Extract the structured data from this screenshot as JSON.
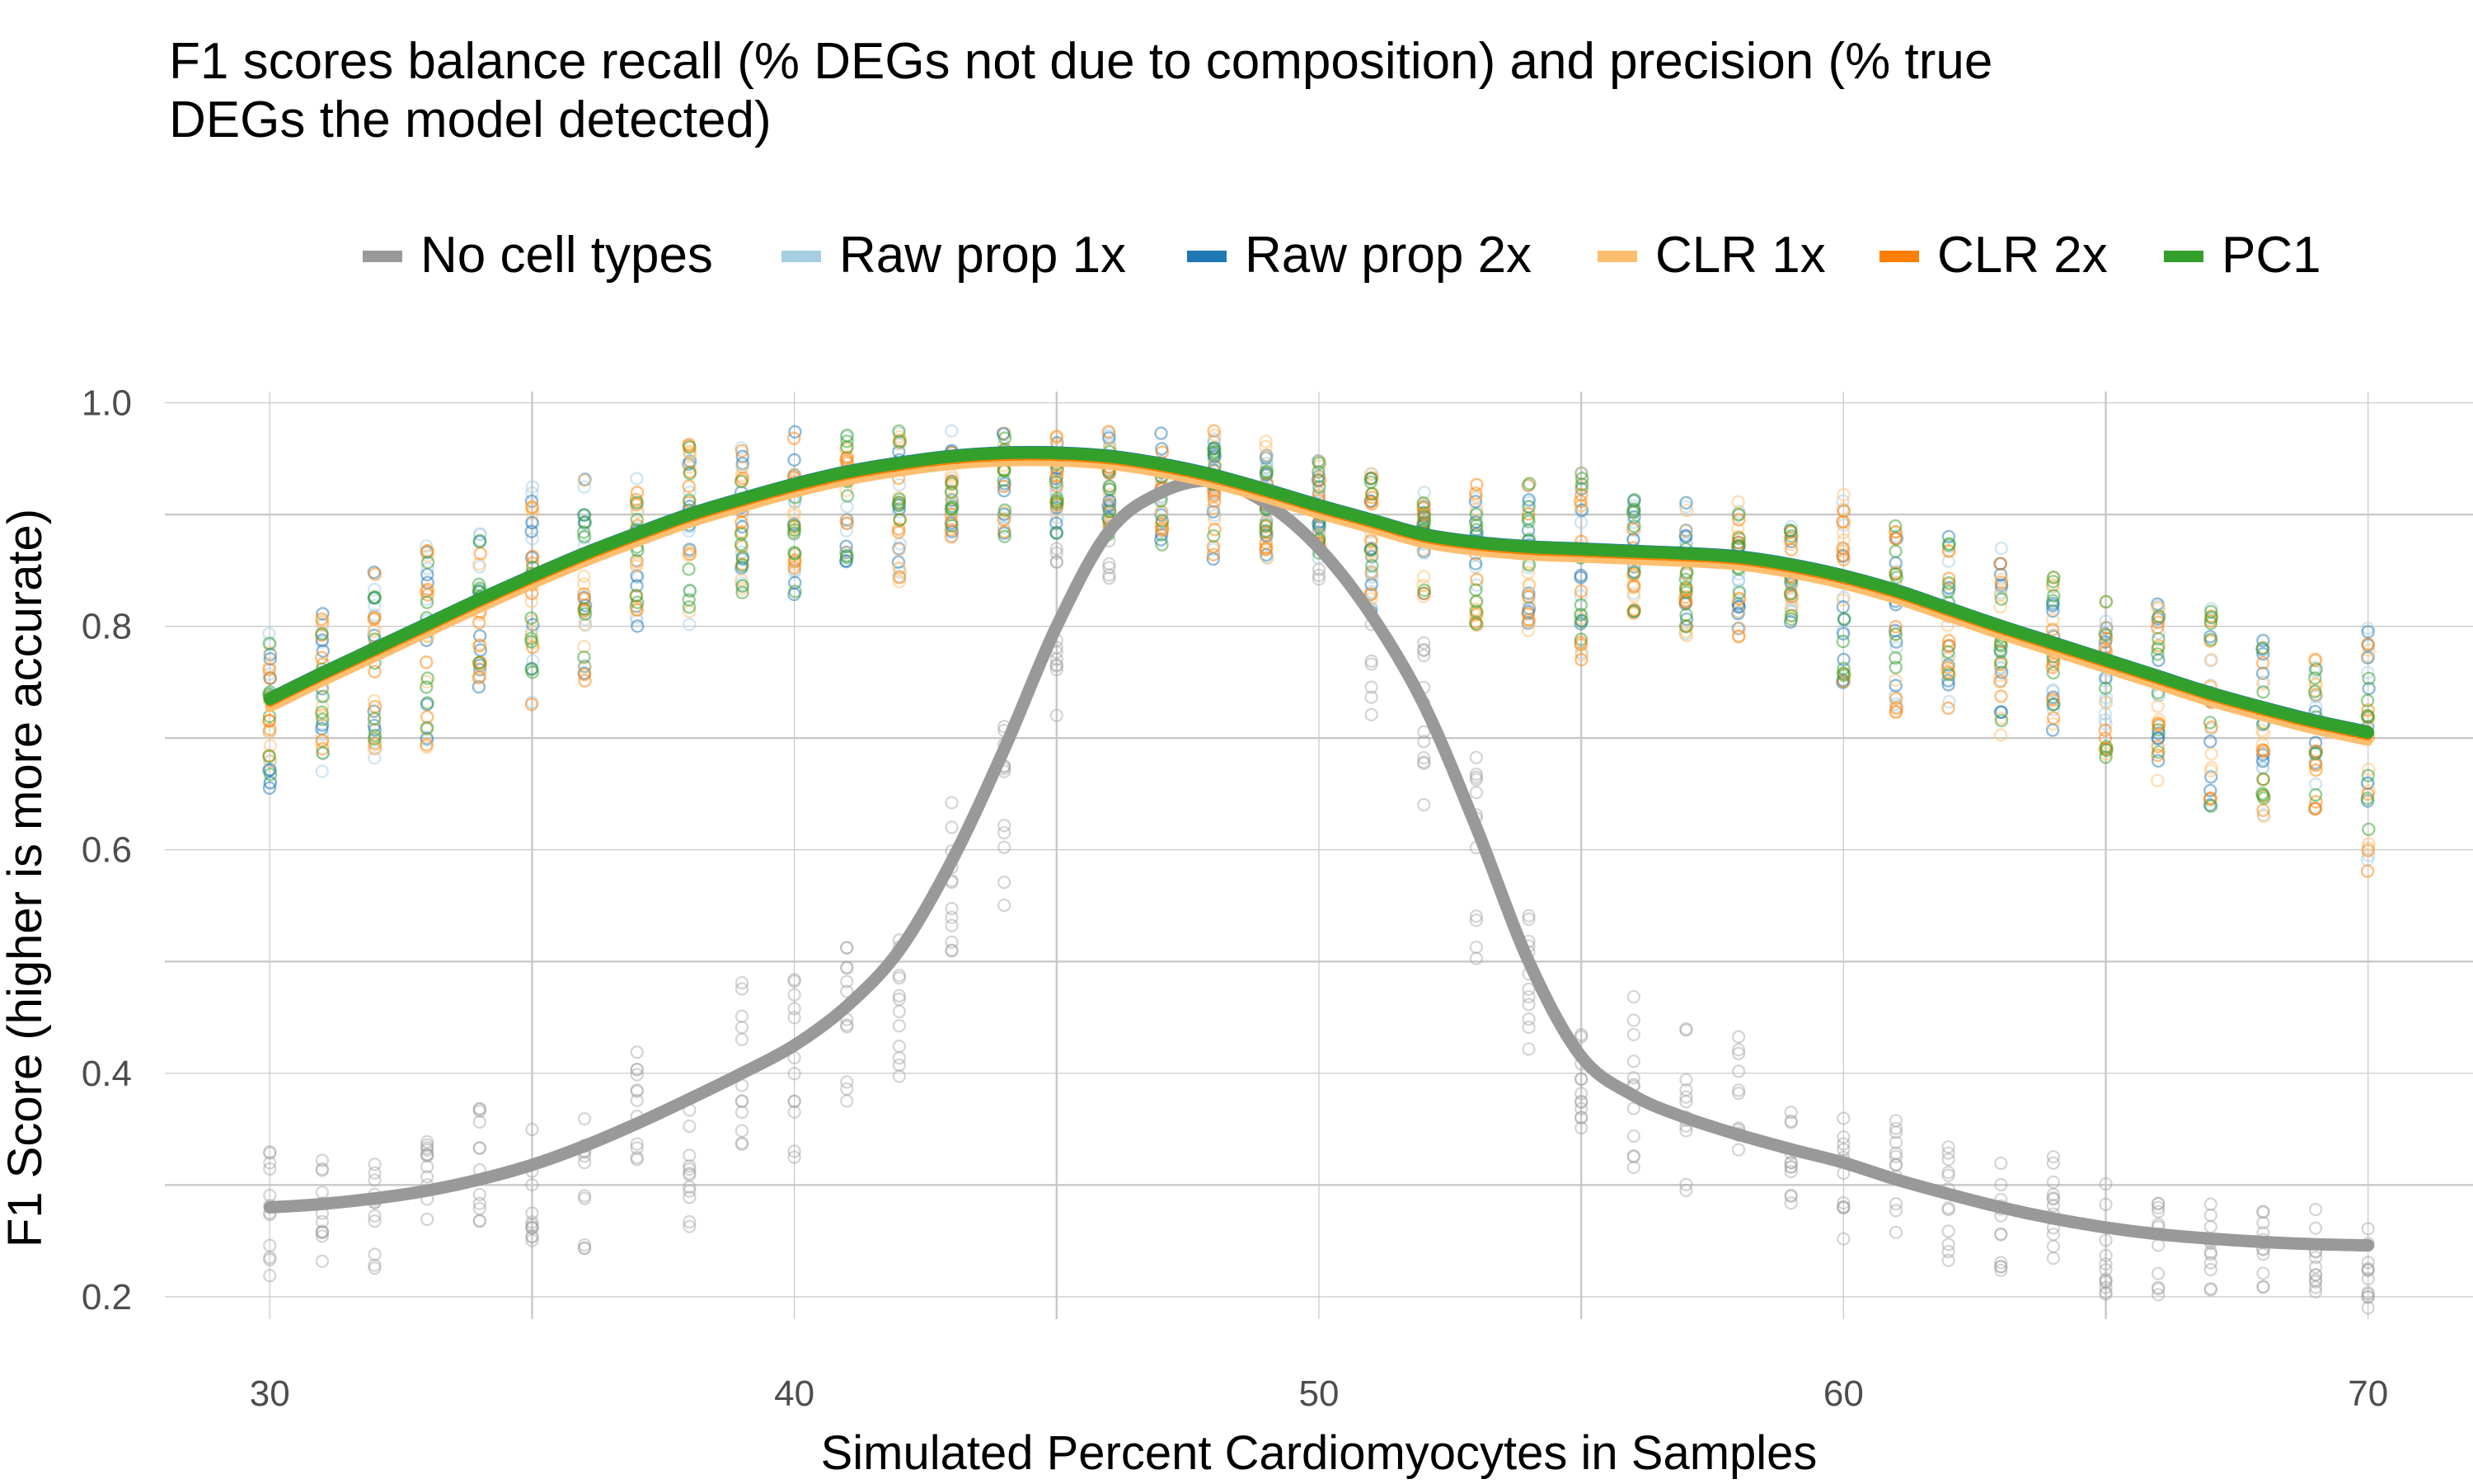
{
  "chart_data": {
    "type": "scatter",
    "title": "F1 scores balance recall (% DEGs not due to composition) and precision (% true DEGs the model detected)",
    "title_lines": [
      "F1 scores balance recall (% DEGs not due to composition) and precision (% true",
      "DEGs the model detected)"
    ],
    "xlabel": "Simulated Percent Cardiomyocytes in Samples",
    "ylabel": "F1 Score (higher is more accurate)",
    "xlim": [
      28,
      72
    ],
    "ylim": [
      0.18,
      1.01
    ],
    "x_ticks": [
      30,
      40,
      50,
      60,
      70
    ],
    "y_ticks": [
      0.2,
      0.4,
      0.6,
      0.8,
      1.0
    ],
    "x_tick_labels": [
      "30",
      "40",
      "50",
      "60",
      "70"
    ],
    "y_tick_labels": [
      "0.2",
      "0.4",
      "0.6",
      "0.8",
      "1.0"
    ],
    "grid": true,
    "legend_position": "top",
    "x": [
      30,
      31,
      32,
      33,
      34,
      35,
      36,
      37,
      38,
      39,
      40,
      41,
      42,
      43,
      44,
      45,
      46,
      47,
      48,
      49,
      50,
      51,
      52,
      53,
      54,
      55,
      56,
      57,
      58,
      59,
      60,
      61,
      62,
      63,
      64,
      65,
      66,
      67,
      68,
      69,
      70
    ],
    "series": [
      {
        "name": "No cell types",
        "color": "#999999",
        "smooth": [
          0.28,
          0.283,
          0.288,
          0.295,
          0.305,
          0.318,
          0.335,
          0.355,
          0.377,
          0.4,
          0.425,
          0.46,
          0.51,
          0.59,
          0.69,
          0.8,
          0.885,
          0.92,
          0.93,
          0.91,
          0.87,
          0.81,
          0.73,
          0.62,
          0.5,
          0.415,
          0.38,
          0.36,
          0.345,
          0.332,
          0.32,
          0.305,
          0.292,
          0.28,
          0.27,
          0.262,
          0.256,
          0.252,
          0.249,
          0.247,
          0.246
        ],
        "range_low": [
          0.21,
          0.225,
          0.22,
          0.235,
          0.255,
          0.25,
          0.24,
          0.29,
          0.26,
          0.32,
          0.31,
          0.37,
          0.34,
          0.5,
          0.55,
          0.72,
          0.84,
          0.9,
          0.91,
          0.88,
          0.82,
          0.72,
          0.62,
          0.5,
          0.38,
          0.33,
          0.31,
          0.28,
          0.3,
          0.28,
          0.25,
          0.24,
          0.23,
          0.22,
          0.22,
          0.2,
          0.2,
          0.2,
          0.2,
          0.2,
          0.19
        ],
        "range_high": [
          0.33,
          0.34,
          0.33,
          0.34,
          0.37,
          0.36,
          0.37,
          0.43,
          0.4,
          0.5,
          0.49,
          0.53,
          0.56,
          0.66,
          0.72,
          0.87,
          0.93,
          0.96,
          0.97,
          0.95,
          0.93,
          0.87,
          0.79,
          0.7,
          0.57,
          0.47,
          0.47,
          0.44,
          0.44,
          0.38,
          0.37,
          0.36,
          0.35,
          0.32,
          0.33,
          0.31,
          0.3,
          0.3,
          0.28,
          0.28,
          0.28
        ]
      },
      {
        "name": "Raw prop 1x",
        "color": "#a6cee3",
        "smooth": [
          0.735,
          0.758,
          0.78,
          0.802,
          0.824,
          0.845,
          0.865,
          0.883,
          0.9,
          0.914,
          0.927,
          0.938,
          0.946,
          0.952,
          0.955,
          0.955,
          0.952,
          0.945,
          0.935,
          0.922,
          0.908,
          0.895,
          0.882,
          0.875,
          0.871,
          0.869,
          0.867,
          0.865,
          0.862,
          0.855,
          0.845,
          0.832,
          0.816,
          0.8,
          0.785,
          0.77,
          0.755,
          0.74,
          0.727,
          0.715,
          0.705
        ],
        "range_low": [
          0.65,
          0.67,
          0.68,
          0.69,
          0.74,
          0.73,
          0.75,
          0.8,
          0.8,
          0.83,
          0.82,
          0.85,
          0.84,
          0.88,
          0.88,
          0.88,
          0.88,
          0.87,
          0.86,
          0.86,
          0.85,
          0.81,
          0.82,
          0.8,
          0.79,
          0.77,
          0.8,
          0.79,
          0.79,
          0.8,
          0.74,
          0.72,
          0.72,
          0.7,
          0.7,
          0.68,
          0.66,
          0.63,
          0.63,
          0.63,
          0.57
        ]
      }
    ]
  }
}
